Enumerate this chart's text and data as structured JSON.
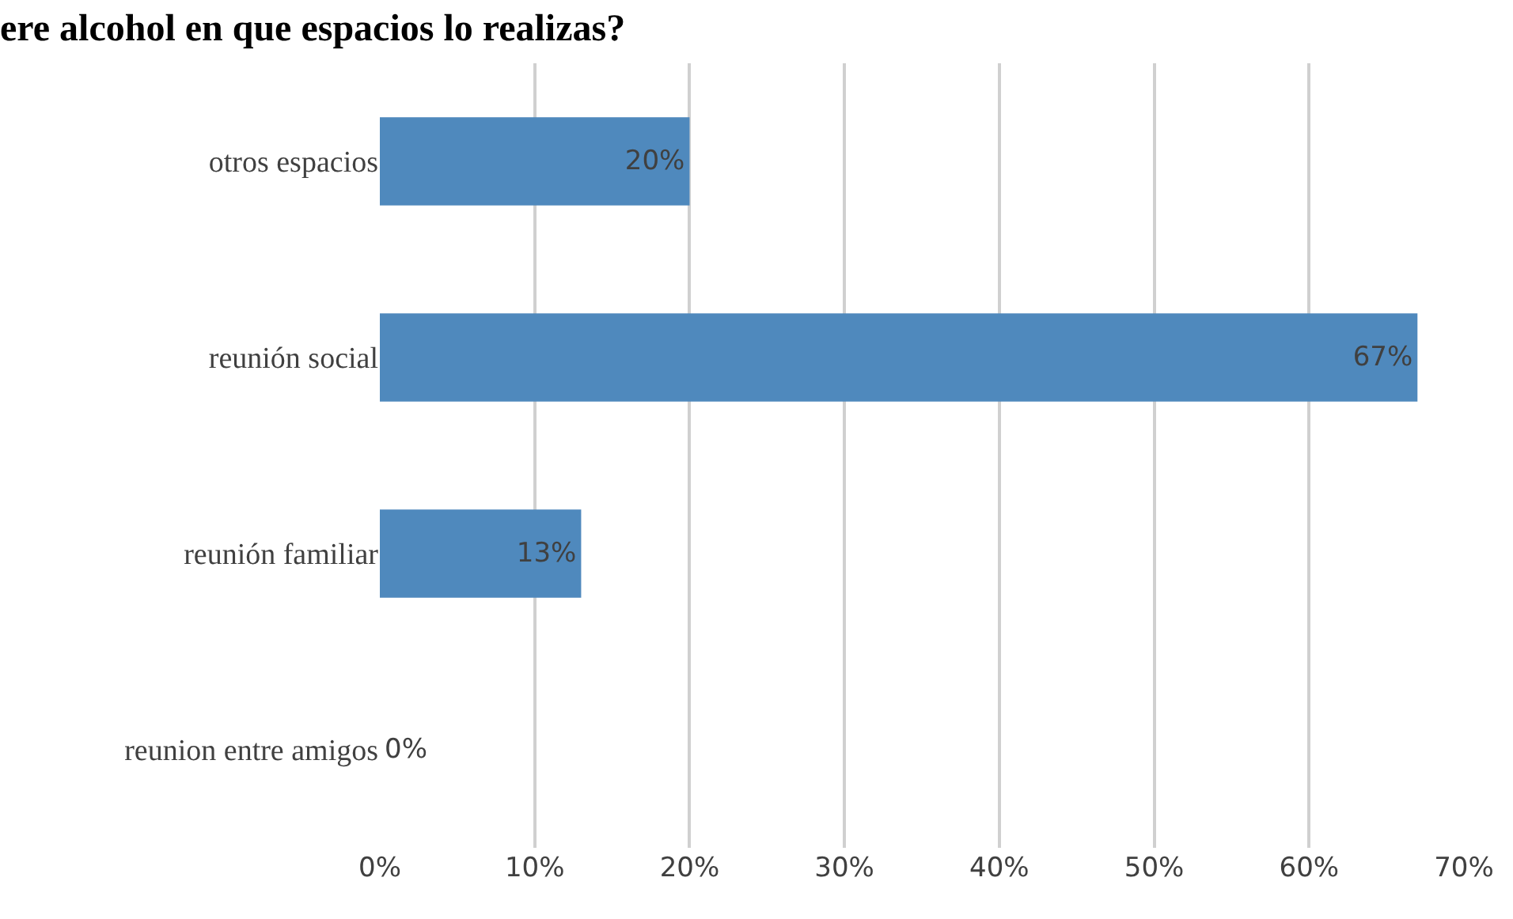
{
  "chart_data": {
    "type": "bar",
    "orientation": "horizontal",
    "title": "ere alcohol en que espacios lo realizas?",
    "categories": [
      "otros espacios",
      "reunión social",
      "reunión familiar",
      "reunion entre amigos"
    ],
    "values": [
      20,
      67,
      13,
      0
    ],
    "value_labels": [
      "20%",
      "67%",
      "13%",
      "0%"
    ],
    "color": "#4f89bd",
    "xlim": [
      0,
      70
    ],
    "xticks": [
      {
        "value": 0,
        "label": "0%"
      },
      {
        "value": 10,
        "label": "10%"
      },
      {
        "value": 20,
        "label": "20%"
      },
      {
        "value": 30,
        "label": "30%"
      },
      {
        "value": 40,
        "label": "40%"
      },
      {
        "value": 50,
        "label": "50%"
      },
      {
        "value": 60,
        "label": "60%"
      },
      {
        "value": 70,
        "label": "70%"
      }
    ],
    "grid": "x",
    "legend": false
  }
}
